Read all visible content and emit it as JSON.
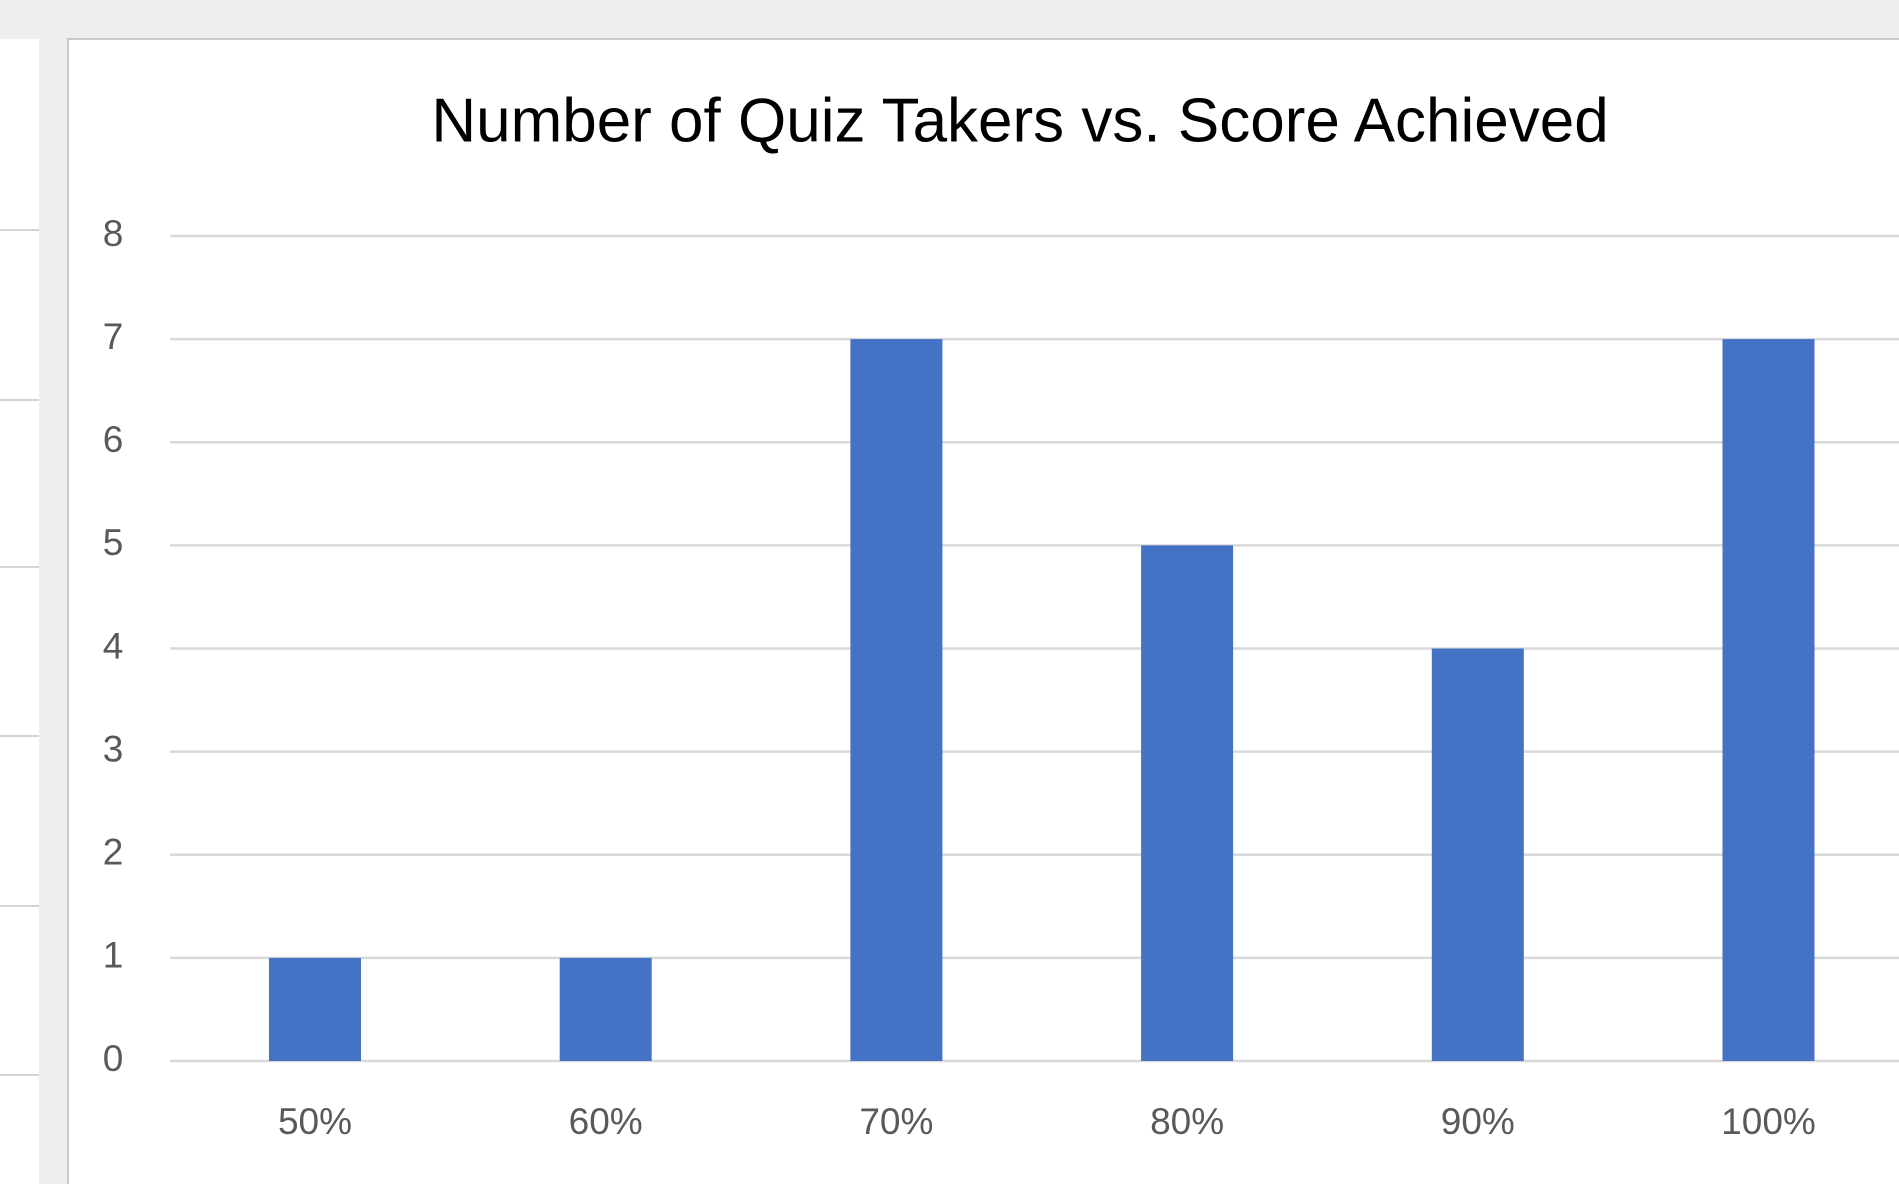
{
  "chart_data": {
    "type": "bar",
    "title": "Number of Quiz Takers vs. Score Achieved",
    "categories": [
      "50%",
      "60%",
      "70%",
      "80%",
      "90%",
      "100%"
    ],
    "values": [
      1,
      1,
      7,
      5,
      4,
      7
    ],
    "color": "#4472c4",
    "ylim": [
      0,
      8
    ],
    "yticks": [
      0,
      1,
      2,
      3,
      4,
      5,
      6,
      7,
      8
    ],
    "grid": true
  }
}
